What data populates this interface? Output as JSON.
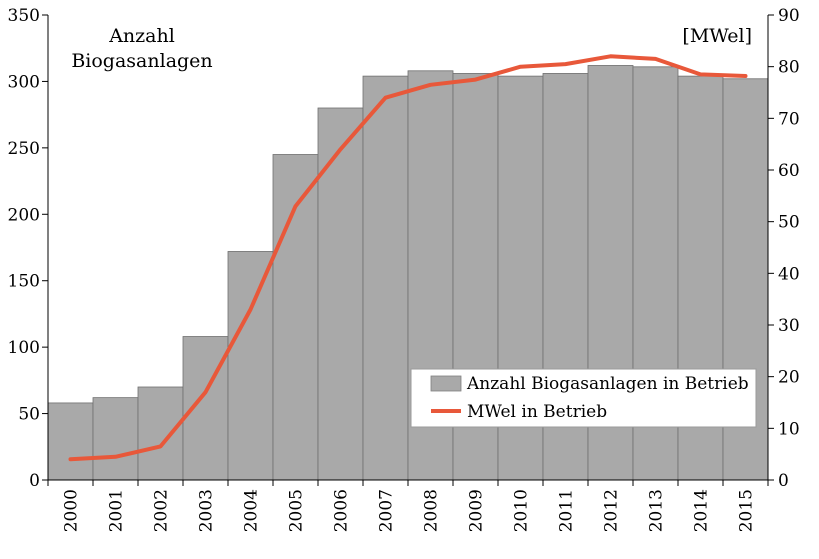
{
  "chart_data": {
    "type": "bar",
    "categories": [
      "2000",
      "2001",
      "2002",
      "2003",
      "2004",
      "2005",
      "2006",
      "2007",
      "2008",
      "2009",
      "2010",
      "2011",
      "2012",
      "2013",
      "2014",
      "2015"
    ],
    "series": [
      {
        "name": "Anzahl Biogasanlagen in Betrieb",
        "type": "bar",
        "axis": "left",
        "color": "#a9a9a9",
        "values": [
          58,
          62,
          70,
          108,
          172,
          245,
          280,
          304,
          308,
          306,
          304,
          306,
          312,
          311,
          304,
          302
        ]
      },
      {
        "name": "MWel in Betrieb",
        "type": "line",
        "axis": "right",
        "color": "#e8583a",
        "values": [
          4.0,
          4.5,
          6.5,
          17.0,
          33.0,
          53.0,
          64.0,
          74.0,
          76.5,
          77.5,
          80.0,
          80.5,
          82.0,
          81.5,
          78.5,
          78.2
        ]
      }
    ],
    "annotation_left": "Anzahl\nBiogasanlagen",
    "annotation_right": "[MWel]",
    "y_left": {
      "ylim": [
        0,
        350
      ],
      "ticks": [
        "0",
        "50",
        "100",
        "150",
        "200",
        "250",
        "300",
        "350"
      ]
    },
    "y_right": {
      "ylim": [
        0,
        90
      ],
      "ticks": [
        "0",
        "10",
        "20",
        "30",
        "40",
        "50",
        "60",
        "70",
        "80",
        "90"
      ]
    },
    "grid": false,
    "legend_position": "bottom-right"
  }
}
